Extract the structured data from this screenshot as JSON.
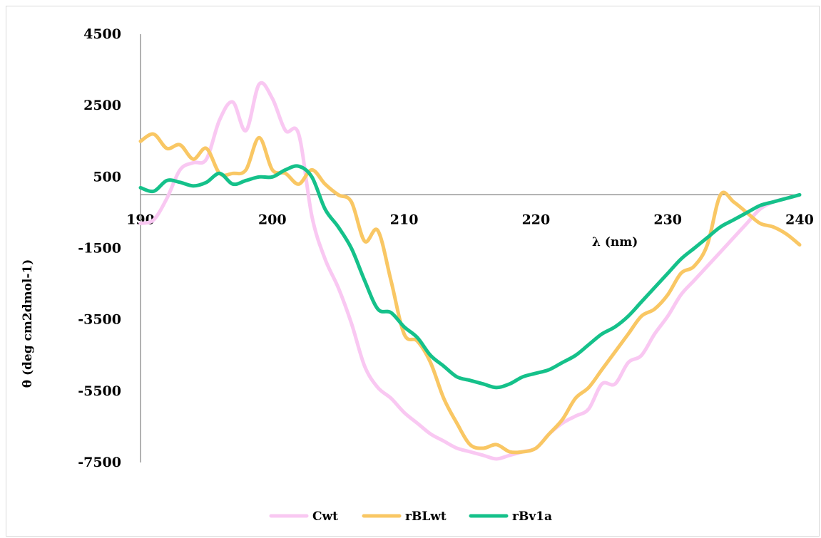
{
  "chart_data": {
    "type": "line",
    "title": "",
    "xlabel": "λ (nm)",
    "ylabel": "θ (deg cm2dmol-1)",
    "xlim": [
      190,
      240
    ],
    "ylim": [
      -7500,
      4500
    ],
    "x_ticks": [
      "190",
      "200",
      "210",
      "220",
      "230",
      "240"
    ],
    "y_ticks": [
      "4500",
      "2500",
      "500",
      "-1500",
      "-3500",
      "-5500",
      "-7500"
    ],
    "legend_position": "bottom",
    "grid": false,
    "series": [
      {
        "name": "Cwt",
        "color": "#f9c8f2",
        "x": [
          190,
          191,
          192,
          193,
          194,
          195,
          196,
          197,
          198,
          199,
          200,
          201,
          202,
          203,
          204,
          205,
          206,
          207,
          208,
          209,
          210,
          211,
          212,
          213,
          214,
          215,
          216,
          217,
          218,
          219,
          220,
          221,
          222,
          223,
          224,
          225,
          226,
          227,
          228,
          229,
          230,
          231,
          232,
          233,
          234,
          235,
          236,
          237,
          238,
          239,
          240
        ],
        "y": [
          -800,
          -700,
          -100,
          700,
          900,
          1000,
          2100,
          2600,
          1800,
          3100,
          2700,
          1800,
          1700,
          -600,
          -1800,
          -2600,
          -3600,
          -4800,
          -5400,
          -5700,
          -6100,
          -6400,
          -6700,
          -6900,
          -7100,
          -7200,
          -7300,
          -7400,
          -7300,
          -7200,
          -7100,
          -6700,
          -6400,
          -6200,
          -6000,
          -5300,
          -5300,
          -4700,
          -4500,
          -3900,
          -3400,
          -2800,
          -2400,
          -2000,
          -1600,
          -1200,
          -800,
          -400,
          -200,
          -100,
          0
        ]
      },
      {
        "name": "rBLwt",
        "color": "#f9c764",
        "x": [
          190,
          191,
          192,
          193,
          194,
          195,
          196,
          197,
          198,
          199,
          200,
          201,
          202,
          203,
          204,
          205,
          206,
          207,
          208,
          209,
          210,
          211,
          212,
          213,
          214,
          215,
          216,
          217,
          218,
          219,
          220,
          221,
          222,
          223,
          224,
          225,
          226,
          227,
          228,
          229,
          230,
          231,
          232,
          233,
          234,
          235,
          236,
          237,
          238,
          239,
          240
        ],
        "y": [
          1500,
          1700,
          1300,
          1400,
          1000,
          1300,
          600,
          600,
          700,
          1600,
          700,
          600,
          300,
          700,
          300,
          0,
          -200,
          -1300,
          -1000,
          -2400,
          -3900,
          -4100,
          -4700,
          -5700,
          -6400,
          -7000,
          -7100,
          -7000,
          -7200,
          -7200,
          -7100,
          -6700,
          -6300,
          -5700,
          -5400,
          -4900,
          -4400,
          -3900,
          -3400,
          -3200,
          -2800,
          -2200,
          -2000,
          -1400,
          0,
          -200,
          -500,
          -800,
          -900,
          -1100,
          -1400
        ]
      },
      {
        "name": "rBv1a",
        "color": "#15c18a",
        "x": [
          190,
          191,
          192,
          193,
          194,
          195,
          196,
          197,
          198,
          199,
          200,
          201,
          202,
          203,
          204,
          205,
          206,
          207,
          208,
          209,
          210,
          211,
          212,
          213,
          214,
          215,
          216,
          217,
          218,
          219,
          220,
          221,
          222,
          223,
          224,
          225,
          226,
          227,
          228,
          229,
          230,
          231,
          232,
          233,
          234,
          235,
          236,
          237,
          238,
          239,
          240
        ],
        "y": [
          200,
          100,
          400,
          350,
          250,
          350,
          600,
          300,
          400,
          500,
          500,
          700,
          800,
          500,
          -400,
          -900,
          -1500,
          -2400,
          -3200,
          -3300,
          -3700,
          -4000,
          -4500,
          -4800,
          -5100,
          -5200,
          -5300,
          -5400,
          -5300,
          -5100,
          -5000,
          -4900,
          -4700,
          -4500,
          -4200,
          -3900,
          -3700,
          -3400,
          -3000,
          -2600,
          -2200,
          -1800,
          -1500,
          -1200,
          -900,
          -700,
          -500,
          -300,
          -200,
          -100,
          0
        ]
      }
    ]
  }
}
